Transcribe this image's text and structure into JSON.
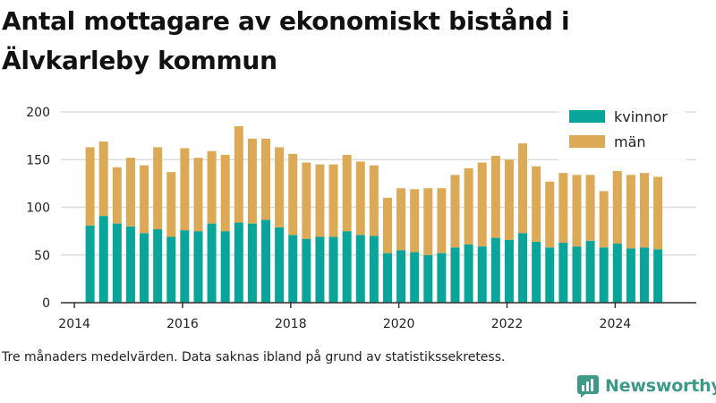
{
  "title": "Antal mottagare av ekonomiskt bistånd i Älvkarleby kommun",
  "caption": "Tre månaders medelvärden. Data saknas ibland på grund av statistikssekretess.",
  "brand": "Newsworthy",
  "colors": {
    "kvinnor": "#0aa59a",
    "man": "#dcaa56",
    "grid": "#dddddd",
    "axis": "#333333",
    "brand": "#3c9a86"
  },
  "chart_data": {
    "type": "bar",
    "stacked": true,
    "x_start": 2014.29,
    "x_step": 0.25,
    "xlim": [
      2013.75,
      2025.5
    ],
    "ylim": [
      0,
      210
    ],
    "y_ticks": [
      0,
      50,
      100,
      150,
      200
    ],
    "x_ticks": [
      2014,
      2016,
      2018,
      2020,
      2022,
      2024
    ],
    "legend_position": "top-right",
    "series": [
      {
        "name": "kvinnor",
        "values": [
          81,
          91,
          83,
          80,
          73,
          77,
          69,
          76,
          75,
          83,
          75,
          84,
          83,
          87,
          79,
          71,
          67,
          69,
          69,
          75,
          71,
          70,
          52,
          55,
          53,
          50,
          52,
          58,
          61,
          59,
          68,
          66,
          73,
          64,
          58,
          63,
          59,
          65,
          58,
          62,
          57,
          58,
          56
        ]
      },
      {
        "name": "män",
        "values": [
          82,
          78,
          59,
          72,
          71,
          86,
          68,
          86,
          77,
          76,
          80,
          101,
          89,
          85,
          84,
          85,
          80,
          76,
          76,
          80,
          77,
          74,
          58,
          65,
          66,
          70,
          68,
          76,
          80,
          88,
          86,
          84,
          94,
          79,
          69,
          73,
          75,
          69,
          59,
          76,
          77,
          78,
          76
        ]
      }
    ]
  }
}
